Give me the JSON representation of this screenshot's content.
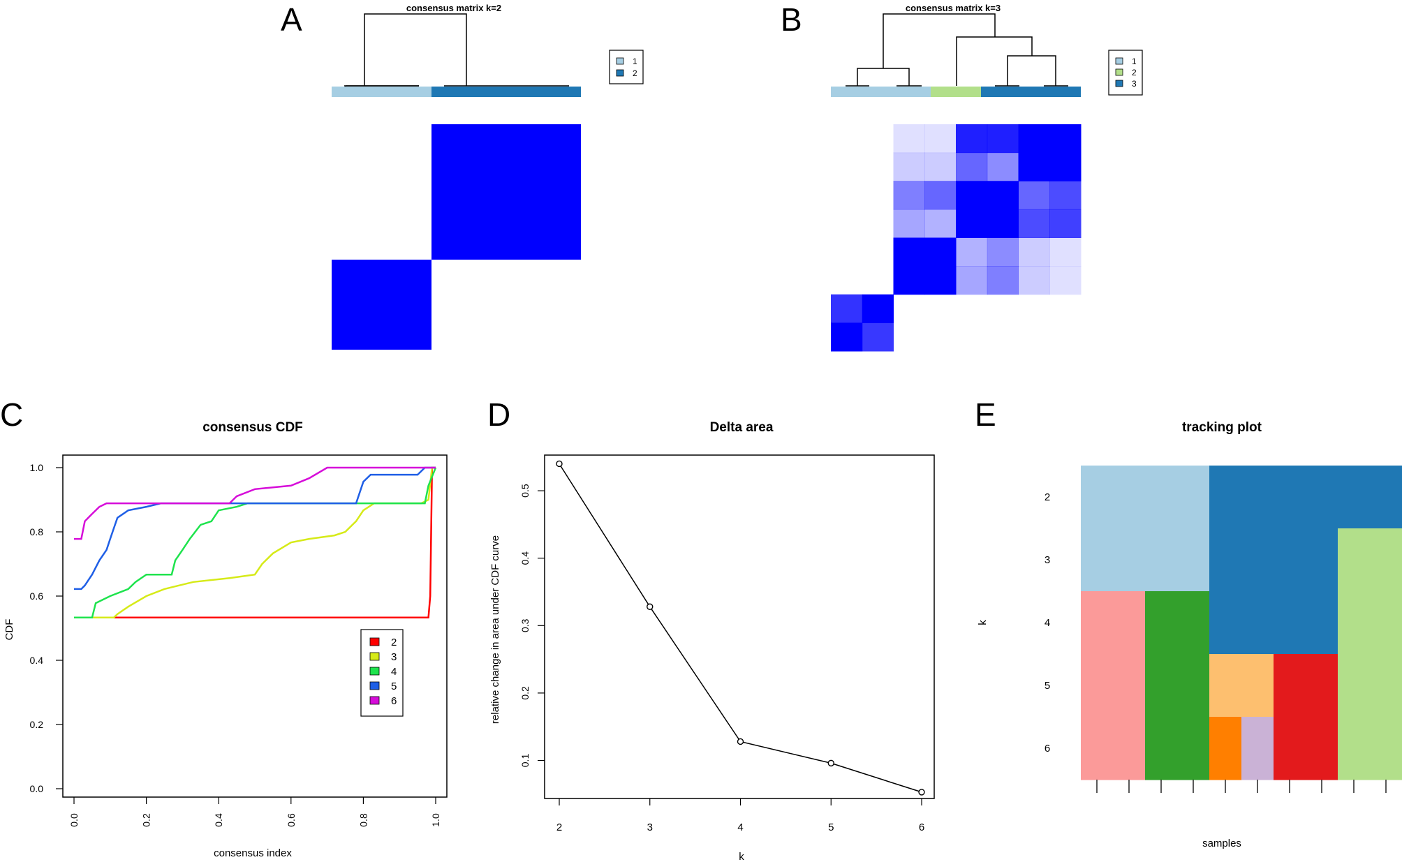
{
  "panels": {
    "A": {
      "letter": "A",
      "title": "consensus matrix k=2",
      "legend": [
        "1",
        "2"
      ]
    },
    "B": {
      "letter": "B",
      "title": "consensus matrix k=3",
      "legend": [
        "1",
        "2",
        "3"
      ]
    },
    "C": {
      "letter": "C"
    },
    "D": {
      "letter": "D"
    },
    "E": {
      "letter": "E"
    }
  },
  "colors": {
    "cluster1": "#a6cee3",
    "cluster2_k2": "#1f78b4",
    "cluster2_k3": "#b2df8a",
    "cluster3_k3": "#1f78b4",
    "heat": "#0000ff",
    "cdf_k2": "#ff0000",
    "cdf_k3": "#d6ea18",
    "cdf_k4": "#1ee34d",
    "cdf_k5": "#1f5fe6",
    "cdf_k6": "#d60cd9"
  },
  "chart_data": [
    {
      "type": "heatmap",
      "panel": "A",
      "title": "consensus matrix k=2",
      "legend": [
        "1",
        "2"
      ],
      "blocks": [
        {
          "row": "cluster2",
          "col": "cluster2",
          "value": 1.0
        },
        {
          "row": "cluster1",
          "col": "cluster1",
          "value": 1.0
        },
        {
          "row": "cluster1",
          "col": "cluster2",
          "value": 0.0
        },
        {
          "row": "cluster2",
          "col": "cluster1",
          "value": 0.0
        }
      ]
    },
    {
      "type": "heatmap",
      "panel": "B",
      "title": "consensus matrix k=3",
      "legend": [
        "1",
        "2",
        "3"
      ],
      "grid_values": [
        [
          0,
          0,
          0.12,
          0.12,
          0.88,
          0.88,
          1,
          1
        ],
        [
          0,
          0,
          0.2,
          0.2,
          0.6,
          0.45,
          1,
          1
        ],
        [
          0,
          0,
          0.5,
          0.6,
          1,
          1,
          0.6,
          0.7
        ],
        [
          0,
          0,
          0.35,
          0.3,
          1,
          1,
          0.7,
          0.75
        ],
        [
          0,
          0,
          1,
          1,
          0.3,
          0.45,
          0.2,
          0.12
        ],
        [
          0,
          0,
          1,
          1,
          0.35,
          0.5,
          0.2,
          0.12
        ],
        [
          0.8,
          1,
          0,
          0,
          0,
          0,
          0,
          0
        ],
        [
          1,
          0.78,
          0,
          0,
          0,
          0,
          0,
          0
        ]
      ]
    },
    {
      "type": "line",
      "panel": "C",
      "title": "consensus CDF",
      "xlabel": "consensus index",
      "ylabel": "CDF",
      "xlim": [
        0,
        1
      ],
      "ylim": [
        0,
        1
      ],
      "xticks": [
        "0.0",
        "0.2",
        "0.4",
        "0.6",
        "0.8",
        "1.0"
      ],
      "yticks": [
        "0.0",
        "0.2",
        "0.4",
        "0.6",
        "0.8",
        "1.0"
      ],
      "legend": {
        "position": "bottom-right",
        "entries": [
          "2",
          "3",
          "4",
          "5",
          "6"
        ]
      },
      "series": [
        {
          "name": "2",
          "color": "#ff0000",
          "points": [
            [
              0,
              0.533
            ],
            [
              0.12,
              0.533
            ],
            [
              0.98,
              0.533
            ],
            [
              0.985,
              0.6
            ],
            [
              0.99,
              1.0
            ],
            [
              1.0,
              1.0
            ]
          ]
        },
        {
          "name": "3",
          "color": "#d6ea18",
          "points": [
            [
              0,
              0.533
            ],
            [
              0.11,
              0.533
            ],
            [
              0.12,
              0.544
            ],
            [
              0.15,
              0.567
            ],
            [
              0.2,
              0.6
            ],
            [
              0.25,
              0.622
            ],
            [
              0.33,
              0.644
            ],
            [
              0.43,
              0.656
            ],
            [
              0.5,
              0.667
            ],
            [
              0.52,
              0.7
            ],
            [
              0.55,
              0.733
            ],
            [
              0.6,
              0.767
            ],
            [
              0.65,
              0.778
            ],
            [
              0.72,
              0.789
            ],
            [
              0.75,
              0.8
            ],
            [
              0.78,
              0.833
            ],
            [
              0.8,
              0.867
            ],
            [
              0.83,
              0.889
            ],
            [
              0.96,
              0.889
            ],
            [
              0.98,
              0.9
            ],
            [
              0.99,
              1.0
            ],
            [
              1.0,
              1.0
            ]
          ]
        },
        {
          "name": "4",
          "color": "#1ee34d",
          "points": [
            [
              0,
              0.533
            ],
            [
              0.05,
              0.533
            ],
            [
              0.06,
              0.578
            ],
            [
              0.1,
              0.6
            ],
            [
              0.15,
              0.622
            ],
            [
              0.17,
              0.644
            ],
            [
              0.2,
              0.667
            ],
            [
              0.27,
              0.667
            ],
            [
              0.28,
              0.711
            ],
            [
              0.3,
              0.744
            ],
            [
              0.32,
              0.778
            ],
            [
              0.35,
              0.822
            ],
            [
              0.38,
              0.833
            ],
            [
              0.4,
              0.867
            ],
            [
              0.45,
              0.878
            ],
            [
              0.48,
              0.889
            ],
            [
              0.97,
              0.889
            ],
            [
              0.98,
              0.944
            ],
            [
              1.0,
              1.0
            ]
          ]
        },
        {
          "name": "5",
          "color": "#1f5fe6",
          "points": [
            [
              0,
              0.622
            ],
            [
              0.02,
              0.622
            ],
            [
              0.03,
              0.633
            ],
            [
              0.05,
              0.667
            ],
            [
              0.07,
              0.711
            ],
            [
              0.09,
              0.744
            ],
            [
              0.1,
              0.778
            ],
            [
              0.11,
              0.811
            ],
            [
              0.12,
              0.844
            ],
            [
              0.15,
              0.867
            ],
            [
              0.2,
              0.878
            ],
            [
              0.24,
              0.889
            ],
            [
              0.78,
              0.889
            ],
            [
              0.8,
              0.956
            ],
            [
              0.82,
              0.978
            ],
            [
              0.95,
              0.978
            ],
            [
              0.97,
              1.0
            ],
            [
              1.0,
              1.0
            ]
          ]
        },
        {
          "name": "6",
          "color": "#d60cd9",
          "points": [
            [
              0,
              0.778
            ],
            [
              0.02,
              0.778
            ],
            [
              0.03,
              0.833
            ],
            [
              0.05,
              0.856
            ],
            [
              0.07,
              0.878
            ],
            [
              0.09,
              0.889
            ],
            [
              0.43,
              0.889
            ],
            [
              0.45,
              0.911
            ],
            [
              0.5,
              0.933
            ],
            [
              0.6,
              0.944
            ],
            [
              0.65,
              0.967
            ],
            [
              0.7,
              1.0
            ],
            [
              1.0,
              1.0
            ]
          ]
        }
      ]
    },
    {
      "type": "line",
      "panel": "D",
      "title": "Delta area",
      "xlabel": "k",
      "ylabel": "relative change in area under CDF curve",
      "xlim": [
        2,
        6
      ],
      "ylim": [
        0.05,
        0.55
      ],
      "xticks": [
        "2",
        "3",
        "4",
        "5",
        "6"
      ],
      "yticks": [
        "0.1",
        "0.2",
        "0.3",
        "0.4",
        "0.5"
      ],
      "x": [
        2,
        3,
        4,
        5,
        6
      ],
      "values": [
        0.54,
        0.328,
        0.128,
        0.096,
        0.053
      ]
    },
    {
      "type": "heatmap",
      "panel": "E",
      "title": "tracking plot",
      "xlabel": "samples",
      "ylabel": "k",
      "rows": [
        "2",
        "3",
        "4",
        "5",
        "6"
      ],
      "n_samples": 10,
      "segments": [
        [
          {
            "from": 0,
            "to": 4,
            "color": "#a6cee3"
          },
          {
            "from": 4,
            "to": 10,
            "color": "#1f78b4"
          }
        ],
        [
          {
            "from": 0,
            "to": 4,
            "color": "#a6cee3"
          },
          {
            "from": 4,
            "to": 8,
            "color": "#1f78b4"
          },
          {
            "from": 8,
            "to": 10,
            "color": "#b2df8a"
          }
        ],
        [
          {
            "from": 0,
            "to": 2,
            "color": "#fb9a99"
          },
          {
            "from": 2,
            "to": 4,
            "color": "#33a02c"
          },
          {
            "from": 4,
            "to": 8,
            "color": "#1f78b4"
          },
          {
            "from": 8,
            "to": 10,
            "color": "#b2df8a"
          }
        ],
        [
          {
            "from": 0,
            "to": 2,
            "color": "#fb9a99"
          },
          {
            "from": 2,
            "to": 4,
            "color": "#33a02c"
          },
          {
            "from": 4,
            "to": 6,
            "color": "#fdbf6f"
          },
          {
            "from": 6,
            "to": 8,
            "color": "#e31a1c"
          },
          {
            "from": 8,
            "to": 10,
            "color": "#b2df8a"
          }
        ],
        [
          {
            "from": 0,
            "to": 2,
            "color": "#fb9a99"
          },
          {
            "from": 2,
            "to": 4,
            "color": "#33a02c"
          },
          {
            "from": 4,
            "to": 5,
            "color": "#ff7f00"
          },
          {
            "from": 5,
            "to": 6,
            "color": "#cab2d6"
          },
          {
            "from": 6,
            "to": 8,
            "color": "#e31a1c"
          },
          {
            "from": 8,
            "to": 10,
            "color": "#b2df8a"
          }
        ]
      ]
    }
  ]
}
